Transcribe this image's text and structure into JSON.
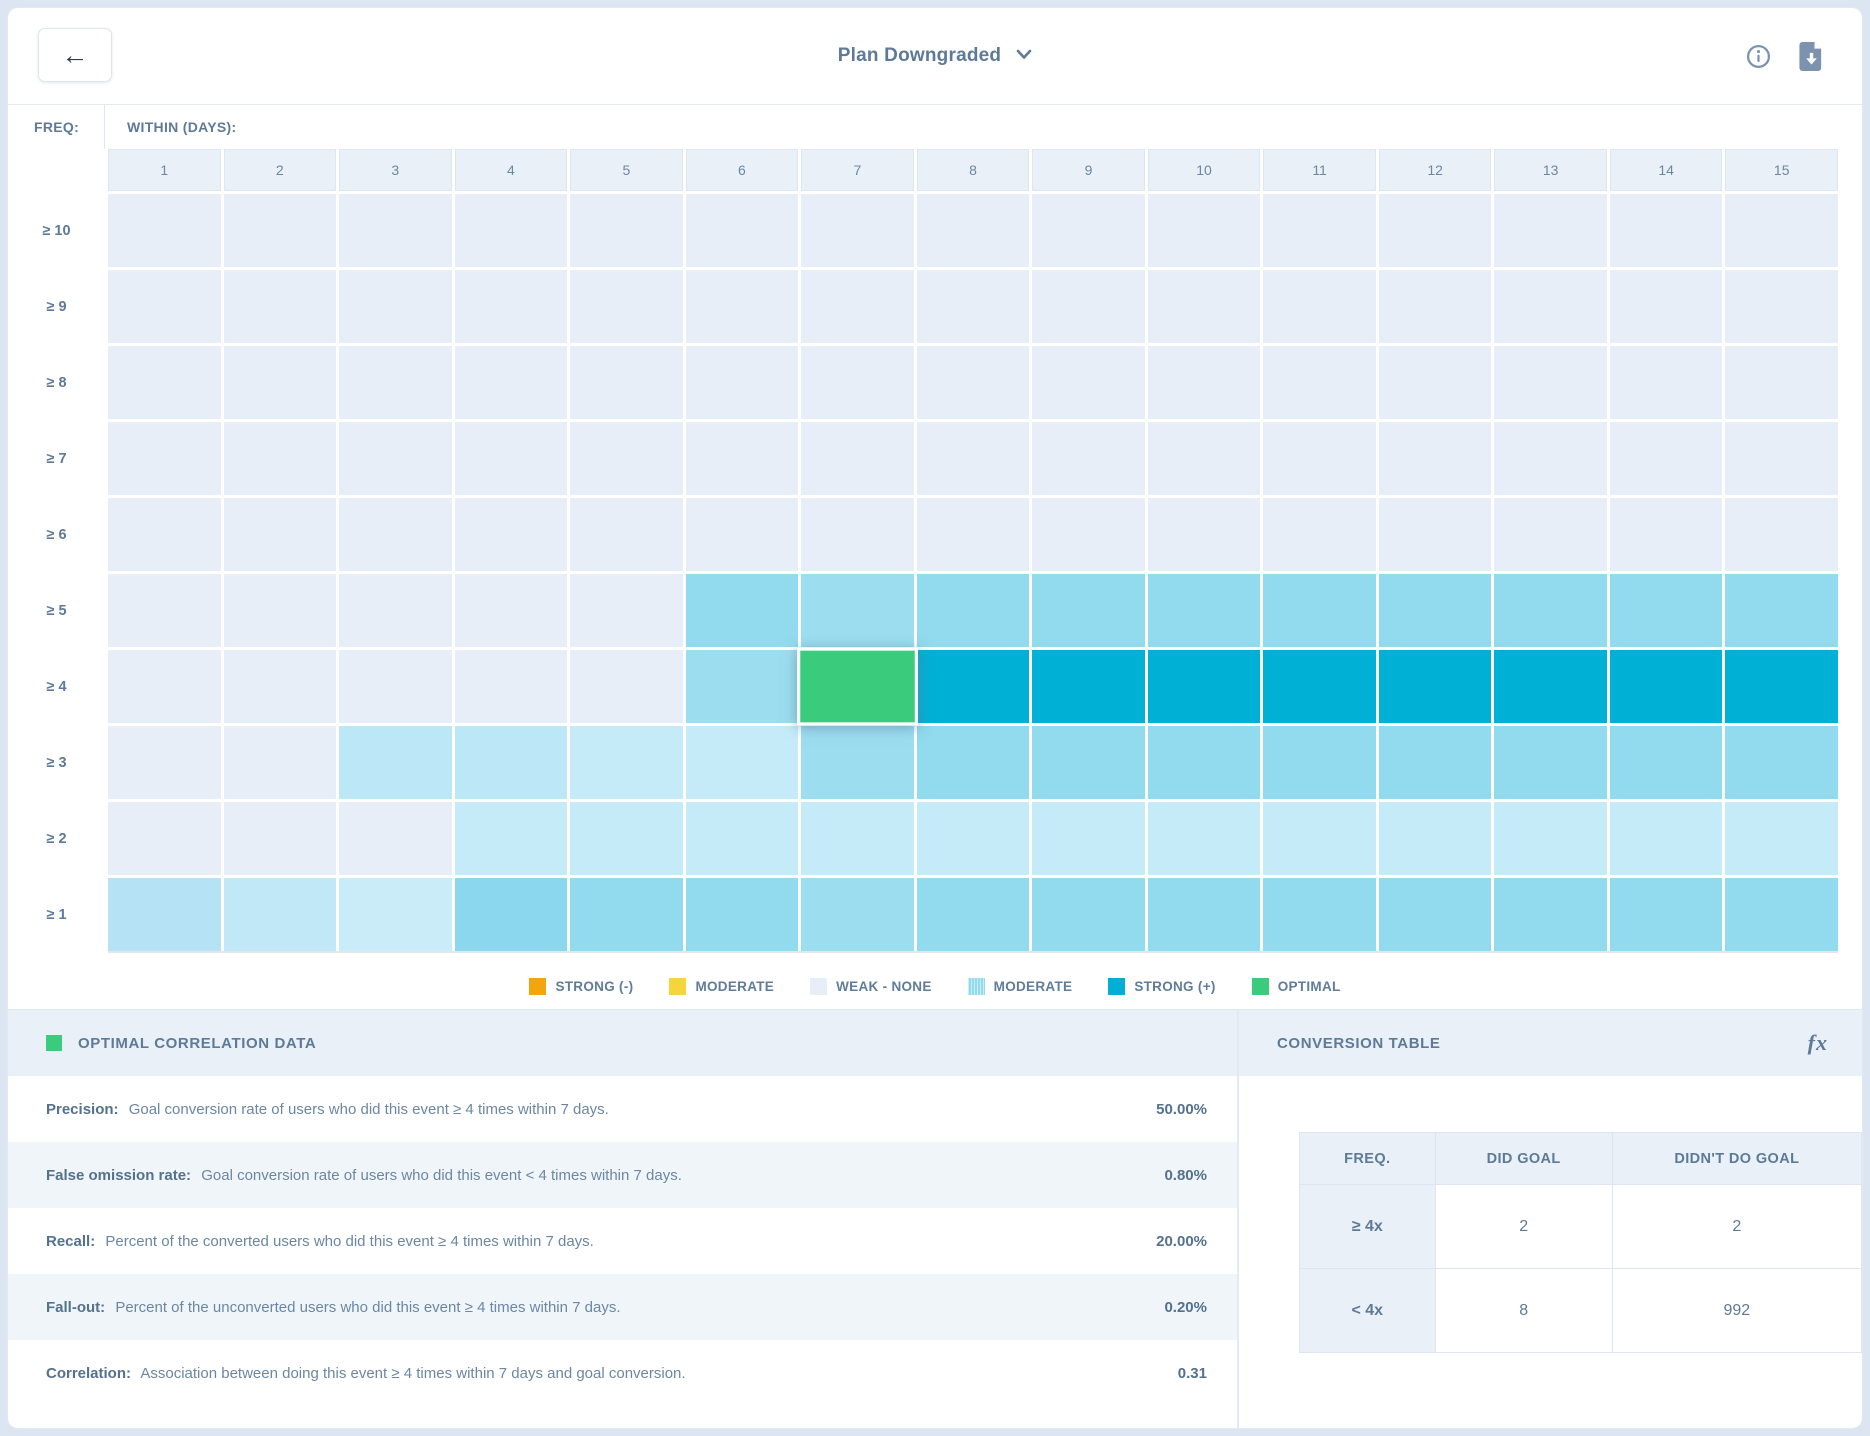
{
  "topbar": {
    "back_label": "←",
    "title": "Plan Downgraded"
  },
  "heatmap": {
    "freq_label": "FREQ:",
    "within_label": "WITHIN (DAYS):",
    "columns": [
      "1",
      "2",
      "3",
      "4",
      "5",
      "6",
      "7",
      "8",
      "9",
      "10",
      "11",
      "12",
      "13",
      "14",
      "15"
    ],
    "row_labels": [
      "≥ 10",
      "≥ 9",
      "≥ 8",
      "≥ 7",
      "≥ 6",
      "≥ 5",
      "≥ 4",
      "≥ 3",
      "≥ 2",
      "≥ 1"
    ],
    "palette": {
      "w": "#e8eef7",
      "la": "#b5e3f5",
      "lb": "#c0e8f7",
      "lc": "#c9ecf8",
      "ld": "#bce7f7",
      "le": "#c6ebf8",
      "m": "#92daee",
      "ml": "#9cdef0",
      "md": "#8bd7ed",
      "s": "#00b0d5",
      "g": "#3bcb7d"
    },
    "cells": [
      [
        "w",
        "w",
        "w",
        "w",
        "w",
        "w",
        "w",
        "w",
        "w",
        "w",
        "w",
        "w",
        "w",
        "w",
        "w"
      ],
      [
        "w",
        "w",
        "w",
        "w",
        "w",
        "w",
        "w",
        "w",
        "w",
        "w",
        "w",
        "w",
        "w",
        "w",
        "w"
      ],
      [
        "w",
        "w",
        "w",
        "w",
        "w",
        "w",
        "w",
        "w",
        "w",
        "w",
        "w",
        "w",
        "w",
        "w",
        "w"
      ],
      [
        "w",
        "w",
        "w",
        "w",
        "w",
        "w",
        "w",
        "w",
        "w",
        "w",
        "w",
        "w",
        "w",
        "w",
        "w"
      ],
      [
        "w",
        "w",
        "w",
        "w",
        "w",
        "w",
        "w",
        "w",
        "w",
        "w",
        "w",
        "w",
        "w",
        "w",
        "w"
      ],
      [
        "w",
        "w",
        "w",
        "w",
        "w",
        "m",
        "ml",
        "m",
        "m",
        "m",
        "m",
        "m",
        "m",
        "m",
        "m"
      ],
      [
        "w",
        "w",
        "w",
        "w",
        "w",
        "ml",
        "g",
        "s",
        "s",
        "s",
        "s",
        "s",
        "s",
        "s",
        "s"
      ],
      [
        "w",
        "w",
        "ld",
        "ld",
        "le",
        "le",
        "ml",
        "m",
        "m",
        "m",
        "m",
        "m",
        "m",
        "m",
        "m"
      ],
      [
        "w",
        "w",
        "w",
        "le",
        "le",
        "le",
        "le",
        "le",
        "le",
        "le",
        "le",
        "le",
        "le",
        "le",
        "le"
      ],
      [
        "la",
        "lb",
        "lc",
        "md",
        "m",
        "m",
        "ml",
        "m",
        "m",
        "m",
        "m",
        "m",
        "m",
        "m",
        "m"
      ]
    ],
    "optimal_cell": {
      "row": 6,
      "col": 6
    }
  },
  "legend": {
    "items": [
      {
        "label": "STRONG (-)",
        "color": "#f1a70c",
        "pattern": false
      },
      {
        "label": "MODERATE",
        "color": "#f6d43c",
        "pattern": false
      },
      {
        "label": "WEAK - NONE",
        "color": "#e8eef7",
        "pattern": false
      },
      {
        "label": "MODERATE",
        "color": "#92daee",
        "pattern": true
      },
      {
        "label": "STRONG (+)",
        "color": "#00afd3",
        "pattern": false
      },
      {
        "label": "OPTIMAL",
        "color": "#3bcb7d",
        "pattern": false
      }
    ]
  },
  "optimal_panel": {
    "title": "OPTIMAL CORRELATION DATA",
    "swatch_color": "#3bcb7d",
    "stats": [
      {
        "label": "Precision:",
        "desc": "Goal conversion rate of users who did this event ≥ 4 times within 7 days.",
        "value": "50.00%"
      },
      {
        "label": "False omission rate:",
        "desc": "Goal conversion rate of users who did this event < 4 times within 7 days.",
        "value": "0.80%"
      },
      {
        "label": "Recall:",
        "desc": "Percent of the converted users who did this event ≥ 4 times within 7 days.",
        "value": "20.00%"
      },
      {
        "label": "Fall-out:",
        "desc": "Percent of the unconverted users who did this event ≥ 4 times within 7 days.",
        "value": "0.20%"
      },
      {
        "label": "Correlation:",
        "desc": "Association between doing this event ≥ 4 times within 7 days and goal conversion.",
        "value": "0.31"
      }
    ]
  },
  "conversion_panel": {
    "title": "CONVERSION TABLE",
    "fx_label": "fx",
    "table": {
      "headers": [
        "FREQ.",
        "DID GOAL",
        "DIDN'T DO GOAL"
      ],
      "rows": [
        {
          "freq": "≥ 4x",
          "did": "2",
          "didnt": "2"
        },
        {
          "freq": "< 4x",
          "did": "8",
          "didnt": "992"
        }
      ]
    }
  },
  "chart_data": {
    "type": "heatmap",
    "title": "Plan Downgraded",
    "xlabel": "WITHIN (DAYS)",
    "ylabel": "FREQ",
    "x": [
      1,
      2,
      3,
      4,
      5,
      6,
      7,
      8,
      9,
      10,
      11,
      12,
      13,
      14,
      15
    ],
    "y": [
      "≥ 10",
      "≥ 9",
      "≥ 8",
      "≥ 7",
      "≥ 6",
      "≥ 5",
      "≥ 4",
      "≥ 3",
      "≥ 2",
      "≥ 1"
    ],
    "legend_levels": [
      "strong-negative",
      "moderate-negative",
      "weak-none",
      "moderate-positive",
      "strong-positive",
      "optimal"
    ],
    "cell_levels_key": {
      "w": "weak-none",
      "la": "moderate-low",
      "lb": "moderate-low",
      "lc": "moderate-low",
      "ld": "moderate-low",
      "le": "moderate-low",
      "m": "moderate",
      "ml": "moderate",
      "md": "moderate",
      "s": "strong-positive",
      "g": "optimal"
    },
    "optimal": {
      "freq": "≥ 4",
      "within_days": 7,
      "correlation": 0.31
    }
  }
}
